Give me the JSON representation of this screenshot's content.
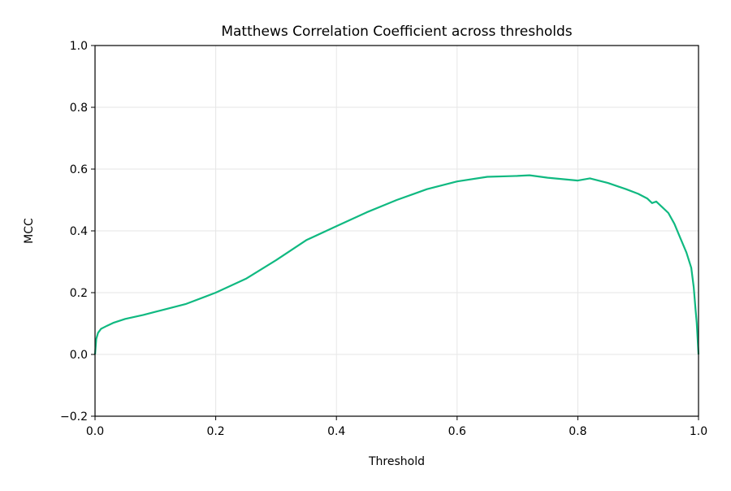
{
  "chart_data": {
    "type": "line",
    "title": "Matthews Correlation Coefficient across thresholds",
    "xlabel": "Threshold",
    "ylabel": "MCC",
    "xlim": [
      0,
      1
    ],
    "ylim": [
      -0.2,
      1.0
    ],
    "xticks": [
      0.0,
      0.2,
      0.4,
      0.6,
      0.8,
      1.0
    ],
    "xtick_labels": [
      "0.0",
      "0.2",
      "0.4",
      "0.6",
      "0.8",
      "1.0"
    ],
    "yticks": [
      -0.2,
      0.0,
      0.2,
      0.4,
      0.6,
      0.8,
      1.0
    ],
    "ytick_labels": [
      "−0.2",
      "0.0",
      "0.2",
      "0.4",
      "0.6",
      "0.8",
      "1.0"
    ],
    "grid": true,
    "color": "#10b981",
    "series": [
      {
        "x": [
          0,
          0.002,
          0.005,
          0.01,
          0.02,
          0.03,
          0.05,
          0.08,
          0.1,
          0.15,
          0.2,
          0.25,
          0.3,
          0.35,
          0.4,
          0.45,
          0.5,
          0.55,
          0.6,
          0.65,
          0.7,
          0.72,
          0.75,
          0.8,
          0.82,
          0.85,
          0.88,
          0.9,
          0.915,
          0.923,
          0.93,
          0.95,
          0.96,
          0.97,
          0.98,
          0.988,
          0.992,
          0.995,
          0.997,
          1.0
        ],
        "y": [
          0,
          0.05,
          0.07,
          0.083,
          0.093,
          0.102,
          0.115,
          0.128,
          0.138,
          0.163,
          0.2,
          0.245,
          0.305,
          0.37,
          0.415,
          0.46,
          0.5,
          0.535,
          0.56,
          0.575,
          0.578,
          0.58,
          0.572,
          0.563,
          0.57,
          0.555,
          0.535,
          0.52,
          0.505,
          0.49,
          0.495,
          0.458,
          0.423,
          0.376,
          0.33,
          0.28,
          0.218,
          0.147,
          0.103,
          0
        ]
      }
    ]
  }
}
